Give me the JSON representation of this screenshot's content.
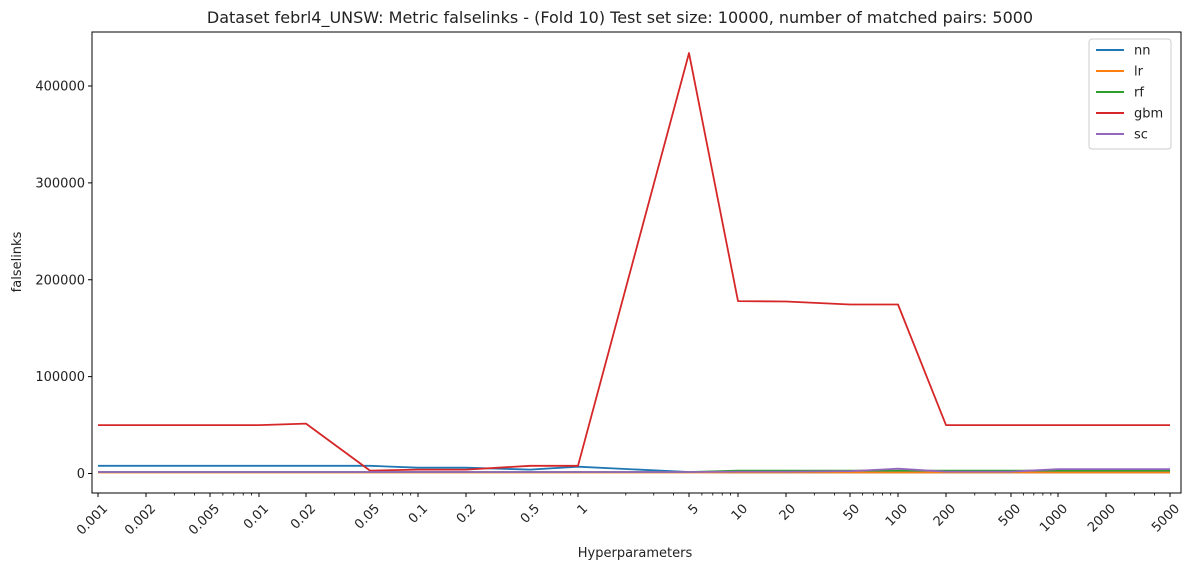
{
  "chart_data": {
    "type": "line",
    "title": "Dataset febrl4_UNSW: Metric falselinks - (Fold 10) Test set size: 10000, number of matched pairs: 5000",
    "xlabel": "Hyperparameters",
    "ylabel": "falselinks",
    "x_scale": "log",
    "x": [
      0.001,
      0.002,
      0.005,
      0.01,
      0.02,
      0.05,
      0.1,
      0.2,
      0.5,
      1,
      5,
      10,
      20,
      50,
      100,
      200,
      500,
      1000,
      2000,
      5000
    ],
    "x_tick_labels": [
      "0.001",
      "0.002",
      "0.005",
      "0.01",
      "0.02",
      "0.05",
      "0.1",
      "0.2",
      "0.5",
      "1",
      "5",
      "10",
      "20",
      "50",
      "100",
      "200",
      "500",
      "1000",
      "2000",
      "5000"
    ],
    "y_ticks": [
      0,
      100000,
      200000,
      300000,
      400000
    ],
    "y_tick_labels": [
      "0",
      "100000",
      "200000",
      "300000",
      "400000"
    ],
    "ylim": [
      -22000,
      455000
    ],
    "legend_position": "top-right",
    "series": [
      {
        "name": "nn",
        "color": "#1f77b4",
        "values": [
          8000,
          8000,
          8000,
          8000,
          8000,
          8000,
          6000,
          6000,
          4000,
          7000,
          1500,
          1000,
          1000,
          1000,
          1000,
          1000,
          1000,
          1000,
          1000,
          1000
        ]
      },
      {
        "name": "lr",
        "color": "#ff7f0e",
        "values": [
          1000,
          1000,
          1000,
          1000,
          1000,
          1000,
          1000,
          1000,
          1000,
          1000,
          1000,
          1000,
          1000,
          1000,
          1000,
          1000,
          1000,
          1000,
          1000,
          1000
        ]
      },
      {
        "name": "rf",
        "color": "#2ca02c",
        "values": [
          1500,
          1500,
          1500,
          1500,
          1500,
          1500,
          1500,
          1500,
          1500,
          1500,
          1500,
          3000,
          3000,
          3000,
          3000,
          3000,
          3000,
          3000,
          3000,
          3000
        ]
      },
      {
        "name": "gbm",
        "color": "#d62728",
        "values": [
          50000,
          50000,
          50000,
          50000,
          51500,
          3000,
          4000,
          4000,
          8000,
          8000,
          434000,
          178000,
          177500,
          174500,
          174500,
          50000,
          50000,
          50000,
          50000,
          50000
        ]
      },
      {
        "name": "sc",
        "color": "#9467bd",
        "values": [
          1500,
          1500,
          1500,
          1500,
          1500,
          1500,
          1500,
          1500,
          1500,
          1500,
          1500,
          2000,
          2000,
          2500,
          5000,
          2000,
          2000,
          4500,
          4500,
          4500
        ]
      }
    ]
  }
}
